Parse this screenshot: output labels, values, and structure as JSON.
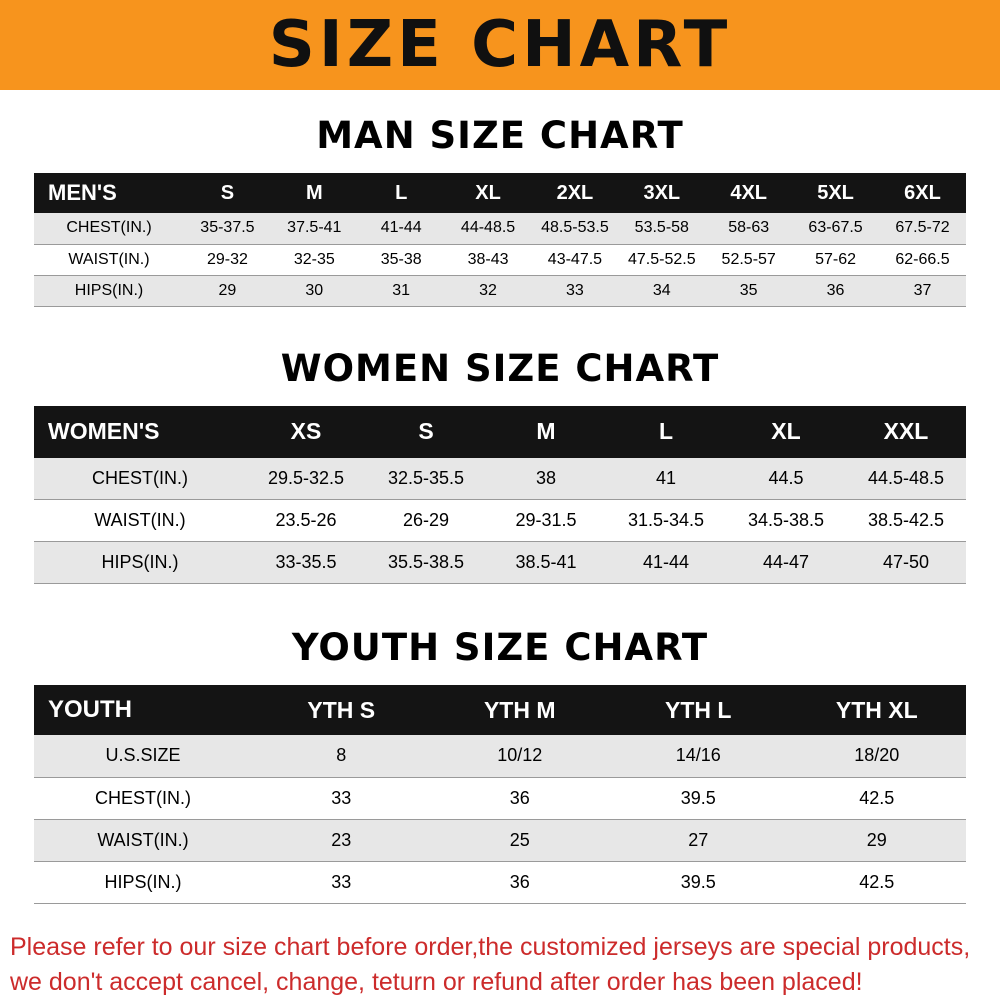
{
  "banner": {
    "title": "SIZE CHART"
  },
  "colors": {
    "banner_bg": "#f7941d",
    "table_header_bg": "#141414",
    "row_stripe": "#e7e7e7",
    "footer_text": "#cc2b2b"
  },
  "chart_data": [
    {
      "type": "table",
      "title": "MAN SIZE CHART",
      "columns": [
        "MEN'S",
        "S",
        "M",
        "L",
        "XL",
        "2XL",
        "3XL",
        "4XL",
        "5XL",
        "6XL"
      ],
      "rows": [
        [
          "CHEST(IN.)",
          "35-37.5",
          "37.5-41",
          "41-44",
          "44-48.5",
          "48.5-53.5",
          "53.5-58",
          "58-63",
          "63-67.5",
          "67.5-72"
        ],
        [
          "WAIST(IN.)",
          "29-32",
          "32-35",
          "35-38",
          "38-43",
          "43-47.5",
          "47.5-52.5",
          "52.5-57",
          "57-62",
          "62-66.5"
        ],
        [
          "HIPS(IN.)",
          "29",
          "30",
          "31",
          "32",
          "33",
          "34",
          "35",
          "36",
          "37"
        ]
      ]
    },
    {
      "type": "table",
      "title": "WOMEN SIZE CHART",
      "columns": [
        "WOMEN'S",
        "XS",
        "S",
        "M",
        "L",
        "XL",
        "XXL"
      ],
      "rows": [
        [
          "CHEST(IN.)",
          "29.5-32.5",
          "32.5-35.5",
          "38",
          "41",
          "44.5",
          "44.5-48.5"
        ],
        [
          "WAIST(IN.)",
          "23.5-26",
          "26-29",
          "29-31.5",
          "31.5-34.5",
          "34.5-38.5",
          "38.5-42.5"
        ],
        [
          "HIPS(IN.)",
          "33-35.5",
          "35.5-38.5",
          "38.5-41",
          "41-44",
          "44-47",
          "47-50"
        ]
      ]
    },
    {
      "type": "table",
      "title": "YOUTH SIZE CHART",
      "columns": [
        "YOUTH",
        "YTH S",
        "YTH M",
        "YTH L",
        "YTH XL"
      ],
      "rows": [
        [
          "U.S.SIZE",
          "8",
          "10/12",
          "14/16",
          "18/20"
        ],
        [
          "CHEST(IN.)",
          "33",
          "36",
          "39.5",
          "42.5"
        ],
        [
          "WAIST(IN.)",
          "23",
          "25",
          "27",
          "29"
        ],
        [
          "HIPS(IN.)",
          "33",
          "36",
          "39.5",
          "42.5"
        ]
      ]
    }
  ],
  "footer": {
    "line1": "Please refer to our size chart before order,the customized jerseys are special products,",
    "line2": "we don't accept cancel, change, teturn or refund after order has been placed!"
  }
}
